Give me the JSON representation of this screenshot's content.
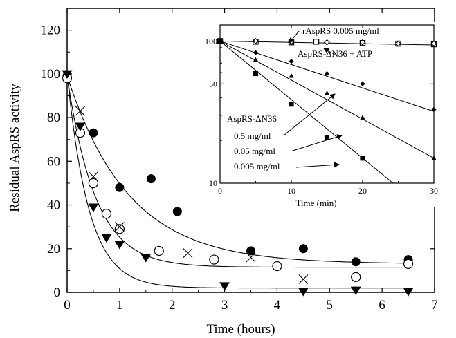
{
  "chart_data": [
    {
      "type": "scatter",
      "title": "",
      "xlabel": "Time (hours)",
      "ylabel": "Residual AspRS activity",
      "xlim": [
        0,
        7
      ],
      "ylim": [
        0,
        130
      ],
      "xticks": [
        0,
        1,
        2,
        3,
        4,
        5,
        6,
        7
      ],
      "yticks": [
        0,
        20,
        40,
        60,
        80,
        100,
        120
      ],
      "series": [
        {
          "marker": "filled-circle",
          "points": [
            [
              0,
              99
            ],
            [
              0.5,
              73
            ],
            [
              1,
              48
            ],
            [
              1.6,
              52
            ],
            [
              2.1,
              37
            ],
            [
              3.5,
              19
            ],
            [
              4.5,
              20
            ],
            [
              5.5,
              14
            ],
            [
              6.5,
              15
            ]
          ],
          "fit": {
            "kind": "exp-decay",
            "plateau": 13,
            "amplitude": 86,
            "k": 0.85
          }
        },
        {
          "marker": "open-circle",
          "points": [
            [
              0,
              98
            ],
            [
              0.25,
              73
            ],
            [
              0.5,
              50
            ],
            [
              0.75,
              36
            ],
            [
              1,
              29
            ],
            [
              1.75,
              19
            ],
            [
              2.8,
              15
            ],
            [
              4,
              12
            ],
            [
              5.5,
              7
            ],
            [
              6.5,
              13
            ]
          ],
          "fit": {
            "kind": "exp-decay",
            "plateau": 11.5,
            "amplitude": 87.5,
            "k": 1.85
          }
        },
        {
          "marker": "cross",
          "points": [
            [
              0.25,
              83
            ],
            [
              0.5,
              53
            ],
            [
              1,
              30
            ],
            [
              2.3,
              18
            ],
            [
              3.5,
              16
            ],
            [
              4.5,
              6
            ]
          ]
        },
        {
          "marker": "filled-triangle-down",
          "points": [
            [
              0,
              100
            ],
            [
              0.25,
              76
            ],
            [
              0.5,
              39
            ],
            [
              0.75,
              25
            ],
            [
              1,
              22
            ],
            [
              1.5,
              16
            ],
            [
              3,
              3
            ],
            [
              4.5,
              0.5
            ],
            [
              5.5,
              1
            ],
            [
              6.5,
              0.5
            ]
          ],
          "fit": {
            "kind": "exp-decay",
            "plateau": 2,
            "amplitude": 98,
            "k": 2.4
          }
        }
      ]
    },
    {
      "type": "scatter",
      "title": "",
      "xlabel": "Time (min)",
      "ylabel": "",
      "xlim": [
        0,
        30
      ],
      "ylim": [
        10,
        130
      ],
      "yscale": "log",
      "xticks": [
        0,
        10,
        20,
        30
      ],
      "yticks": [
        10,
        50,
        100
      ],
      "annotations": {
        "r_asprs": "rAspRS 0.005 mg/ml",
        "atp": "AspRS-ΔN36 + ATP",
        "group": "AspRS-ΔN36",
        "c1": "0.5 mg/ml",
        "c2": "0.05 mg/ml",
        "c3": "0.005 mg/ml"
      },
      "series": [
        {
          "marker": "open-square",
          "points": [
            [
              0,
              100
            ],
            [
              5,
              99
            ],
            [
              10,
              98
            ],
            [
              13.5,
              99
            ],
            [
              20,
              97
            ],
            [
              25,
              96
            ],
            [
              30,
              95
            ]
          ]
        },
        {
          "marker": "open-diamond",
          "points": [
            [
              0,
              100
            ],
            [
              5,
              100
            ],
            [
              10,
              99
            ],
            [
              15,
              98
            ],
            [
              20,
              98
            ],
            [
              25,
              96
            ],
            [
              30,
              96
            ]
          ],
          "fit_end": 94
        },
        {
          "marker": "filled-diamond",
          "points": [
            [
              0,
              100
            ],
            [
              5,
              83
            ],
            [
              10,
              72
            ],
            [
              15,
              59
            ],
            [
              20,
              50
            ],
            [
              30,
              33
            ]
          ],
          "fit_end": 32
        },
        {
          "marker": "filled-triangle-up",
          "points": [
            [
              0,
              100
            ],
            [
              5,
              74
            ],
            [
              10,
              57
            ],
            [
              15,
              43
            ],
            [
              20,
              29
            ],
            [
              30,
              15
            ]
          ],
          "fit_end": 15
        },
        {
          "marker": "filled-square",
          "points": [
            [
              0,
              100
            ],
            [
              5,
              59
            ],
            [
              10,
              36
            ],
            [
              15,
              21
            ],
            [
              20,
              15
            ]
          ],
          "fit_end": 10
        }
      ]
    }
  ]
}
